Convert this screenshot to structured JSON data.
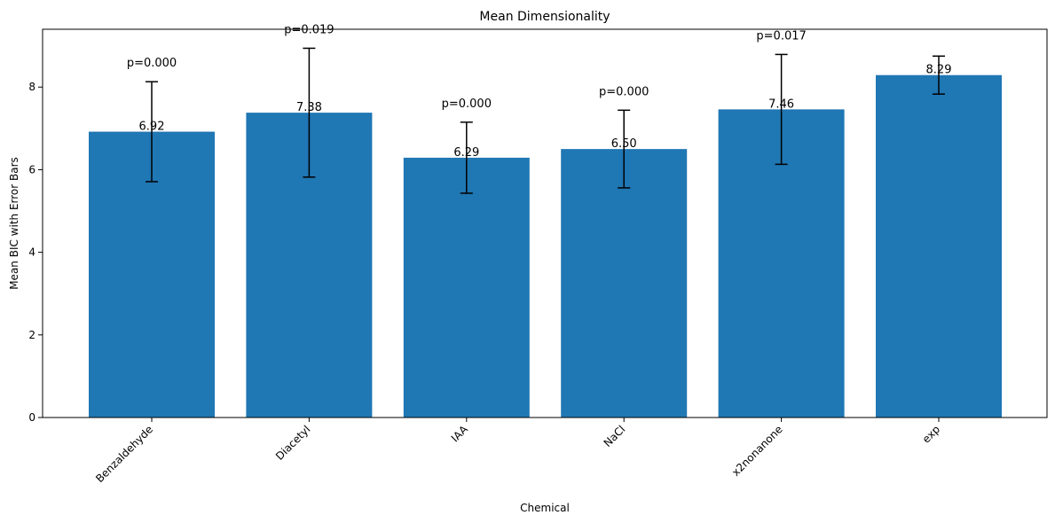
{
  "chart_data": {
    "type": "bar",
    "title": "Mean Dimensionality",
    "xlabel": "Chemical",
    "ylabel": "Mean BIC with Error Bars",
    "categories": [
      "Benzaldehyde",
      "Diacetyl",
      "IAA",
      "NaCl",
      "x2nonanone",
      "exp"
    ],
    "values": [
      6.92,
      7.38,
      6.29,
      6.5,
      7.46,
      8.29
    ],
    "value_labels": [
      "6.92",
      "7.38",
      "6.29",
      "6.50",
      "7.46",
      "8.29"
    ],
    "error": [
      1.21,
      1.56,
      0.86,
      0.94,
      1.33,
      0.46
    ],
    "p_labels": [
      "p=0.000",
      "p=0.019",
      "p=0.000",
      "p=0.000",
      "p=0.017",
      ""
    ],
    "yticks": [
      "0",
      "2",
      "4",
      "6",
      "8"
    ],
    "ylim": [
      0,
      9.4
    ],
    "grid": false,
    "bar_color": "#1f77b4"
  }
}
